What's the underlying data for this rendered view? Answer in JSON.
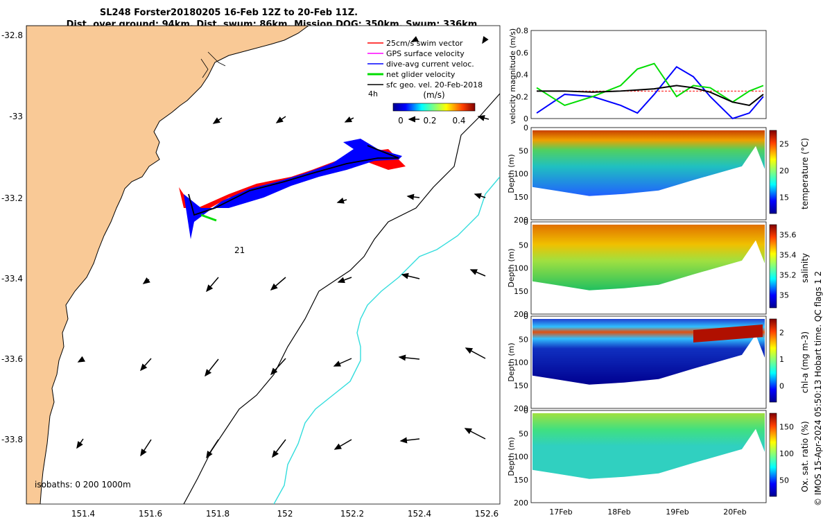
{
  "title": {
    "line1": "SL248 Forster20180205 16-Feb 12Z to 20-Feb 11Z.",
    "line2": "Dist. over ground: 94km. Dist. swum: 86km. Mission DOG: 350km. Swum: 336km"
  },
  "map": {
    "lon_ticks": [
      "151.4",
      "151.6",
      "151.8",
      "152",
      "152.2",
      "152.4",
      "152.6"
    ],
    "lat_ticks": [
      "-32.8",
      "-33",
      "-33.2",
      "-33.4",
      "-33.6",
      "-33.8"
    ],
    "xlim": [
      151.24,
      152.64
    ],
    "ylim": [
      -33.95,
      -32.77
    ],
    "land_color": "#f9c996",
    "time_label": "4h",
    "segment_label": "21",
    "isobaths_label": "isobaths: 0   200  1000m",
    "legend": [
      {
        "label": "25cm/s swim vector",
        "color": "#ff0000"
      },
      {
        "label": "GPS surface velocity",
        "color": "#ff00ff"
      },
      {
        "label": "dive-avg current veloc.",
        "color": "#0000ff"
      },
      {
        "label": "net glider velocity",
        "color": "#00dd00"
      },
      {
        "label": "sfc geo. vel. 20-Feb-2018",
        "color": "#000000"
      }
    ],
    "colorbar": {
      "unit": "(m/s)",
      "ticks": [
        "0",
        "0.2",
        "0.4"
      ]
    }
  },
  "chart_data": [
    {
      "type": "line",
      "title": "",
      "ylabel": "velocity magnitude (m/s)",
      "ylim": [
        0,
        0.8
      ],
      "yticks": [
        "0",
        "0.2",
        "0.4",
        "0.6",
        "0.8"
      ],
      "x_days": [
        16.5,
        17,
        17.5,
        18,
        18.3,
        18.6,
        19,
        19.3,
        19.6,
        20,
        20.3,
        20.55
      ],
      "series": [
        {
          "name": "swim",
          "color": "#ff0000",
          "values": [
            0.25,
            0.25,
            0.25,
            0.25,
            0.25,
            0.25,
            0.25,
            0.25,
            0.25,
            0.25,
            0.25,
            0.25
          ]
        },
        {
          "name": "current",
          "color": "#0000ff",
          "values": [
            0.05,
            0.22,
            0.2,
            0.12,
            0.05,
            0.22,
            0.47,
            0.38,
            0.2,
            0.0,
            0.05,
            0.2
          ]
        },
        {
          "name": "net",
          "color": "#00dd00",
          "values": [
            0.28,
            0.12,
            0.2,
            0.3,
            0.45,
            0.5,
            0.2,
            0.3,
            0.28,
            0.15,
            0.25,
            0.3
          ]
        },
        {
          "name": "geo",
          "color": "#000000",
          "values": [
            0.25,
            0.25,
            0.24,
            0.25,
            0.26,
            0.27,
            0.3,
            0.28,
            0.24,
            0.15,
            0.12,
            0.22
          ]
        }
      ]
    },
    {
      "type": "heatmap",
      "ylabel": "Depth (m)",
      "clabel": "temperature (°C)",
      "yticks": [
        "0",
        "50",
        "100",
        "150",
        "200"
      ],
      "cticks": [
        "15",
        "20",
        "25"
      ]
    },
    {
      "type": "heatmap",
      "ylabel": "Depth (m)",
      "clabel": "salinity",
      "yticks": [
        "0",
        "50",
        "100",
        "150",
        "200"
      ],
      "cticks": [
        "35",
        "35.2",
        "35.4",
        "35.6"
      ]
    },
    {
      "type": "heatmap",
      "ylabel": "Depth (m)",
      "clabel": "chl-a (mg m-3)",
      "yticks": [
        "0",
        "50",
        "100",
        "150",
        "200"
      ],
      "cticks": [
        "0",
        "1",
        "2"
      ]
    },
    {
      "type": "heatmap",
      "ylabel": "Depth (m)",
      "clabel": "Ox. sat. ratio (%)",
      "yticks": [
        "0",
        "50",
        "100",
        "150",
        "200"
      ],
      "cticks": [
        "50",
        "100",
        "150"
      ],
      "xticks": [
        "17Feb",
        "18Feb",
        "19Feb",
        "20Feb"
      ]
    }
  ],
  "footer": "© IMOS 15-Apr-2024 05:50:13 Hobart time. QC flags 1  2"
}
